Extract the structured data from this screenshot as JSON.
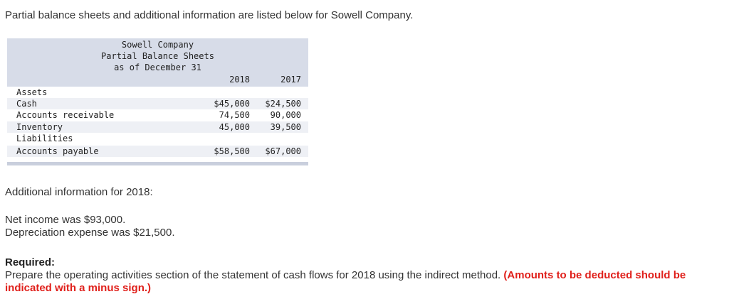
{
  "intro": "Partial balance sheets and additional information are listed below for Sowell Company.",
  "balance_sheet": {
    "company": "Sowell Company",
    "title": "Partial Balance Sheets",
    "date_line": "as of December 31",
    "col_2018": "2018",
    "col_2017": "2017",
    "rows": [
      {
        "label": "Assets",
        "v2018": "",
        "v2017": ""
      },
      {
        "label": "Cash",
        "v2018": "$45,000",
        "v2017": "$24,500"
      },
      {
        "label": "Accounts receivable",
        "v2018": "74,500",
        "v2017": "90,000"
      },
      {
        "label": "Inventory",
        "v2018": "45,000",
        "v2017": "39,500"
      },
      {
        "label": "Liabilities",
        "v2018": "",
        "v2017": ""
      },
      {
        "label": "Accounts payable",
        "v2018": "$58,500",
        "v2017": "$67,000"
      }
    ]
  },
  "additional": {
    "heading": "Additional information for 2018:",
    "net_income": "Net income was $93,000.",
    "depreciation": "Depreciation expense was $21,500."
  },
  "required": {
    "label": "Required:",
    "text": "Prepare the operating activities section of the statement of cash flows for 2018 using the indirect method. ",
    "emphasis": "(Amounts to be deducted should be indicated with a minus sign.)"
  }
}
